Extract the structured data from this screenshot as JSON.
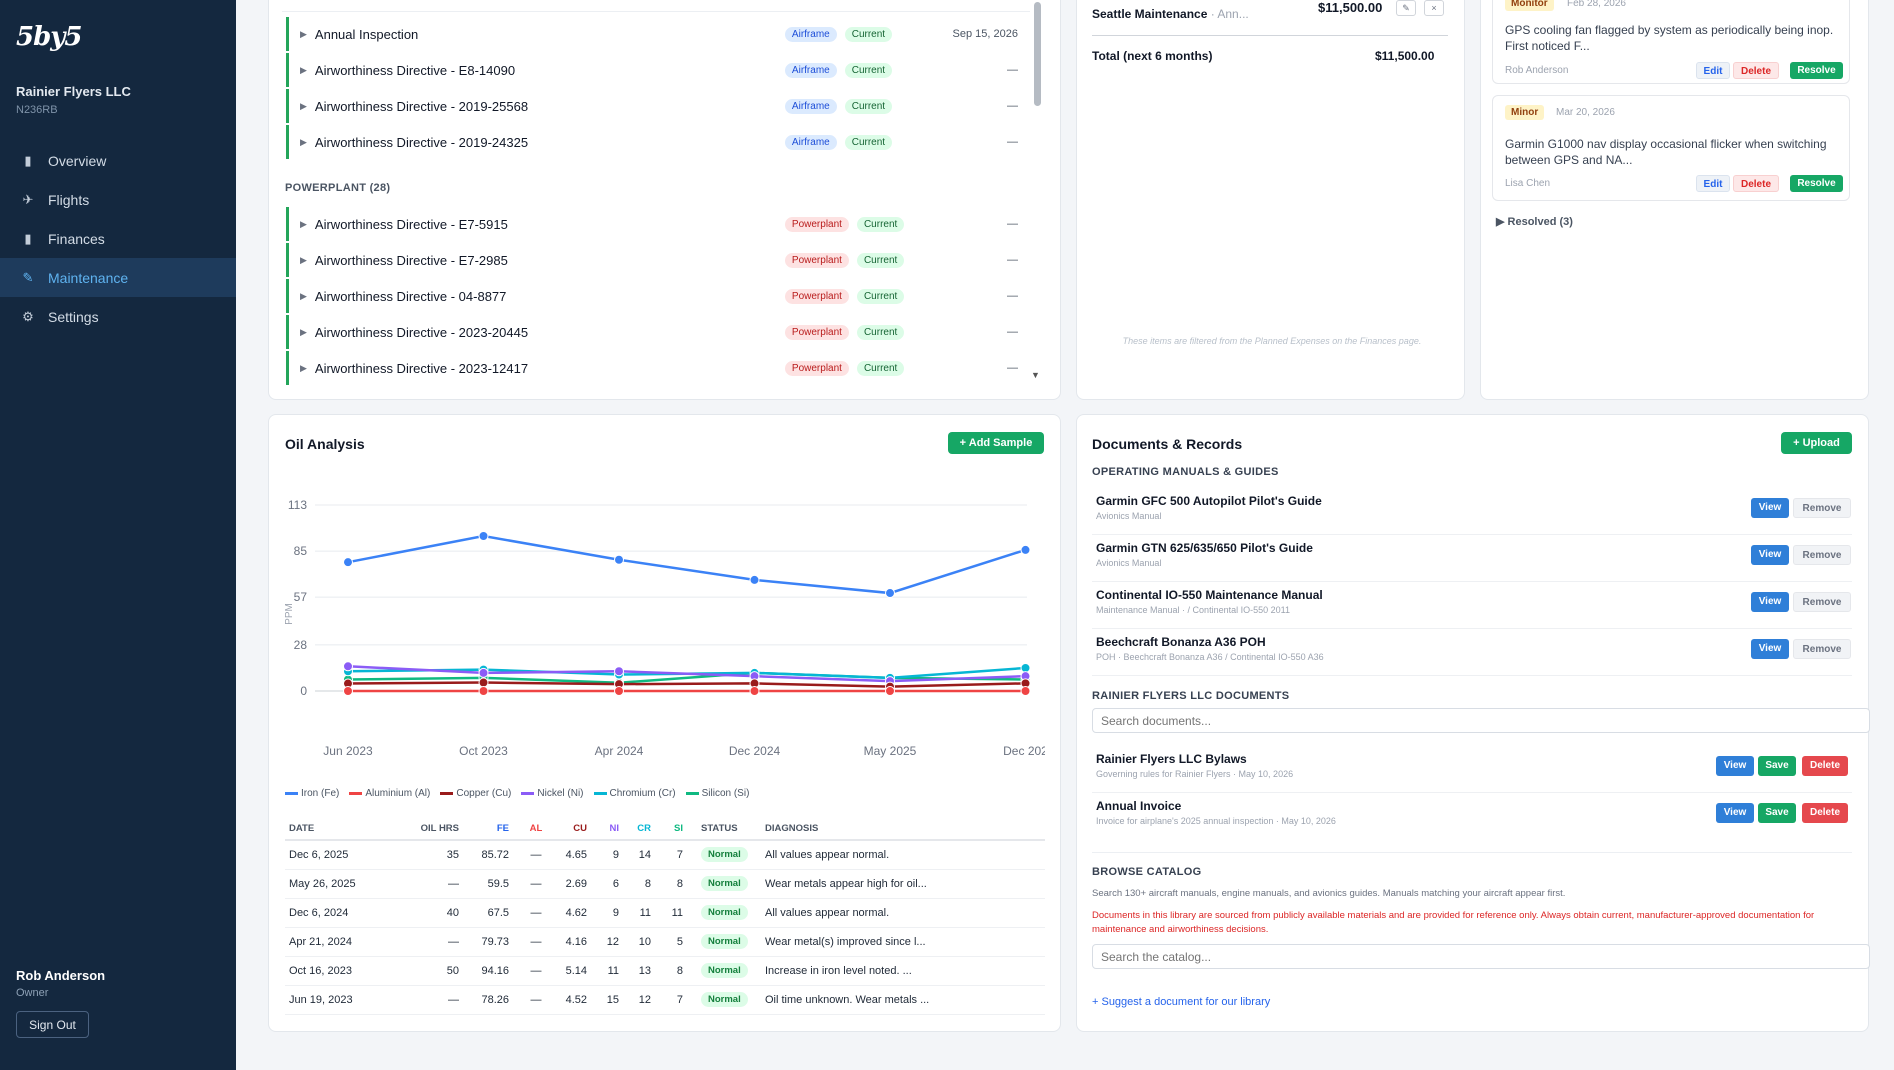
{
  "sidebar": {
    "logo": "5by5",
    "org_name": "Rainier Flyers LLC",
    "tail_number": "N236RB",
    "nav": [
      {
        "label": "Overview",
        "icon": "bar-chart-icon"
      },
      {
        "label": "Flights",
        "icon": "plane-icon"
      },
      {
        "label": "Finances",
        "icon": "bar-chart-icon"
      },
      {
        "label": "Maintenance",
        "icon": "wrench-icon",
        "active": true
      },
      {
        "label": "Settings",
        "icon": "gear-icon"
      }
    ],
    "user_name": "Rob Anderson",
    "user_role": "Owner",
    "sign_out": "Sign Out"
  },
  "maintenance": {
    "airframe_items": [
      {
        "name": "Annual Inspection",
        "category": "Airframe",
        "status": "Current",
        "due": "Sep 15, 2026"
      },
      {
        "name": "Airworthiness Directive - E8-14090",
        "category": "Airframe",
        "status": "Current",
        "due": "—"
      },
      {
        "name": "Airworthiness Directive - 2019-25568",
        "category": "Airframe",
        "status": "Current",
        "due": "—"
      },
      {
        "name": "Airworthiness Directive - 2019-24325",
        "category": "Airframe",
        "status": "Current",
        "due": "—"
      }
    ],
    "powerplant_label": "POWERPLANT (28)",
    "powerplant_items": [
      {
        "name": "Airworthiness Directive - E7-5915",
        "category": "Powerplant",
        "status": "Current",
        "due": "—"
      },
      {
        "name": "Airworthiness Directive - E7-2985",
        "category": "Powerplant",
        "status": "Current",
        "due": "—"
      },
      {
        "name": "Airworthiness Directive - 04-8877",
        "category": "Powerplant",
        "status": "Current",
        "due": "—"
      },
      {
        "name": "Airworthiness Directive - 2023-20445",
        "category": "Powerplant",
        "status": "Current",
        "due": "—"
      },
      {
        "name": "Airworthiness Directive - 2023-12417",
        "category": "Powerplant",
        "status": "Current",
        "due": "—"
      }
    ]
  },
  "expenses": {
    "item_name": "Seattle Maintenance",
    "item_sub": " · Ann...",
    "item_amount": "$11,500.00",
    "total_label": "Total (next 6 months)",
    "total_amount": "$11,500.00",
    "note": "These items are filtered from the Planned Expenses on the Finances page."
  },
  "squawks": {
    "items": [
      {
        "severity": "Monitor",
        "date": "Feb 28, 2026",
        "text": "GPS cooling fan flagged by system as periodically being inop. First noticed F...",
        "by": "Rob Anderson"
      },
      {
        "severity": "Minor",
        "date": "Mar 20, 2026",
        "text": "Garmin G1000 nav display occasional flicker when switching between GPS and NA...",
        "by": "Lisa Chen"
      }
    ],
    "edit": "Edit",
    "delete": "Delete",
    "resolve": "Resolve",
    "resolved_label": "▶ Resolved (3)"
  },
  "oil": {
    "title": "Oil Analysis",
    "add_button": "+ Add Sample",
    "table_headers": [
      "DATE",
      "OIL HRS",
      "FE",
      "AL",
      "CU",
      "NI",
      "CR",
      "SI",
      "STATUS",
      "DIAGNOSIS"
    ],
    "rows": [
      [
        "Dec 6, 2025",
        "35",
        "85.72",
        "—",
        "4.65",
        "9",
        "14",
        "7",
        "Normal",
        "All values appear normal."
      ],
      [
        "May 26, 2025",
        "—",
        "59.5",
        "—",
        "2.69",
        "6",
        "8",
        "8",
        "Normal",
        "Wear metals appear high for oil..."
      ],
      [
        "Dec 6, 2024",
        "40",
        "67.5",
        "—",
        "4.62",
        "9",
        "11",
        "11",
        "Normal",
        "All values appear normal."
      ],
      [
        "Apr 21, 2024",
        "—",
        "79.73",
        "—",
        "4.16",
        "12",
        "10",
        "5",
        "Normal",
        "Wear metal(s) improved since l..."
      ],
      [
        "Oct 16, 2023",
        "50",
        "94.16",
        "—",
        "5.14",
        "11",
        "13",
        "8",
        "Normal",
        "Increase in iron level noted. ..."
      ],
      [
        "Jun 19, 2023",
        "—",
        "78.26",
        "—",
        "4.52",
        "15",
        "12",
        "7",
        "Normal",
        "Oil time unknown. Wear metals ..."
      ]
    ]
  },
  "chart_data": {
    "type": "line",
    "x": [
      "Jun 2023",
      "Oct 2023",
      "Apr 2024",
      "Dec 2024",
      "May 2025",
      "Dec 202"
    ],
    "ylabel": "PPM",
    "yticks": [
      0,
      28,
      57,
      85,
      113
    ],
    "ylim": [
      0,
      113
    ],
    "legend_position": "bottom",
    "series": [
      {
        "name": "Iron (Fe)",
        "color": "#3b82f6",
        "values": [
          78.26,
          94.16,
          79.73,
          67.5,
          59.5,
          85.72
        ]
      },
      {
        "name": "Aluminium (Al)",
        "color": "#ef4444",
        "values": [
          0,
          0,
          0,
          0,
          0,
          0
        ]
      },
      {
        "name": "Copper (Cu)",
        "color": "#991b1b",
        "values": [
          4.52,
          5.14,
          4.16,
          4.62,
          2.69,
          4.65
        ]
      },
      {
        "name": "Nickel (Ni)",
        "color": "#8b5cf6",
        "values": [
          15,
          11,
          12,
          9,
          6,
          9
        ]
      },
      {
        "name": "Chromium (Cr)",
        "color": "#06b6d4",
        "values": [
          12,
          13,
          10,
          11,
          8,
          14
        ]
      },
      {
        "name": "Silicon (Si)",
        "color": "#10b981",
        "values": [
          7,
          8,
          5,
          11,
          8,
          7
        ]
      }
    ]
  },
  "docs": {
    "title": "Documents & Records",
    "upload": "+ Upload",
    "manuals_label": "OPERATING MANUALS & GUIDES",
    "manuals": [
      {
        "title": "Garmin GFC 500 Autopilot Pilot's Guide",
        "sub": "Avionics Manual"
      },
      {
        "title": "Garmin GTN 625/635/650 Pilot's Guide",
        "sub": "Avionics Manual"
      },
      {
        "title": "Continental IO-550 Maintenance Manual",
        "sub": "Maintenance Manual · / Continental IO-550 2011"
      },
      {
        "title": "Beechcraft Bonanza A36 POH",
        "sub": "POH · Beechcraft Bonanza A36 / Continental IO-550 A36"
      }
    ],
    "view": "View",
    "remove": "Remove",
    "save": "Save",
    "delete": "Delete",
    "org_docs_label": "RAINIER FLYERS LLC DOCUMENTS",
    "search_placeholder": "Search documents...",
    "org_docs": [
      {
        "title": "Rainier Flyers LLC Bylaws",
        "sub": "Governing rules for Rainier Flyers · May 10, 2026"
      },
      {
        "title": "Annual Invoice",
        "sub": "Invoice for airplane's 2025 annual inspection · May 10, 2026"
      }
    ],
    "catalog_label": "BROWSE CATALOG",
    "catalog_desc": "Search 130+ aircraft manuals, engine manuals, and avionics guides. Manuals matching your aircraft appear first.",
    "catalog_warn": "Documents in this library are sourced from publicly available materials and are provided for reference only. Always obtain current, manufacturer-approved documentation for maintenance and airworthiness decisions.",
    "catalog_placeholder": "Search the catalog...",
    "suggest": "+ Suggest a document for our library"
  }
}
